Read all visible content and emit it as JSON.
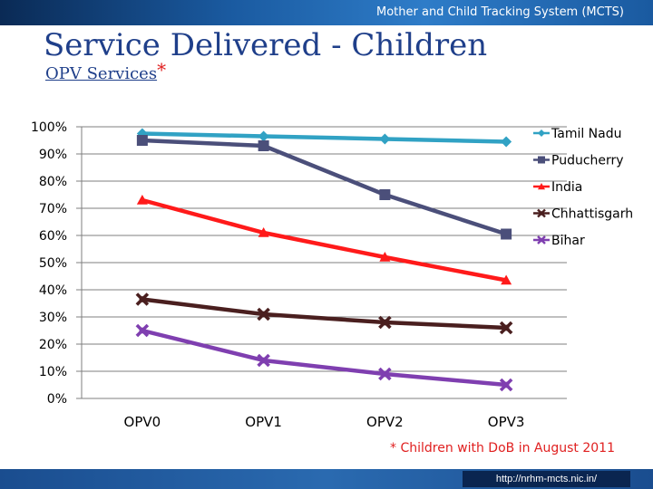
{
  "header": {
    "system_name": "Mother and Child Tracking System (MCTS)",
    "title": "Service Delivered - Children",
    "subtitle": "OPV Services",
    "subtitle_mark": "*"
  },
  "footer": {
    "note": "* Children with DoB in August 2011",
    "url": "http://nrhm-mcts.nic.in/"
  },
  "chart_data": {
    "type": "line",
    "title": "OPV Services",
    "xlabel": "",
    "ylabel": "",
    "categories": [
      "OPV0",
      "OPV1",
      "OPV2",
      "OPV3"
    ],
    "ylim": [
      0,
      100
    ],
    "y_ticks": [
      "0%",
      "10%",
      "20%",
      "30%",
      "40%",
      "50%",
      "60%",
      "70%",
      "80%",
      "90%",
      "100%"
    ],
    "legend_position": "right",
    "series": [
      {
        "name": "Tamil Nadu",
        "values": [
          97.5,
          96.5,
          95.5,
          94.5
        ],
        "color": "#31a2c4",
        "marker": "diamond"
      },
      {
        "name": "Puducherry",
        "values": [
          95,
          93,
          75,
          60.5
        ],
        "color": "#4b4f7a",
        "marker": "square"
      },
      {
        "name": "India",
        "values": [
          73,
          61,
          52,
          43.5
        ],
        "color": "#ff1a1a",
        "marker": "triangle"
      },
      {
        "name": "Chhattisgarh",
        "values": [
          36.5,
          31,
          28,
          26
        ],
        "color": "#4a1f1f",
        "marker": "x"
      },
      {
        "name": "Bihar",
        "values": [
          25,
          14,
          9,
          5
        ],
        "color": "#7f3fb0",
        "marker": "x"
      }
    ]
  }
}
